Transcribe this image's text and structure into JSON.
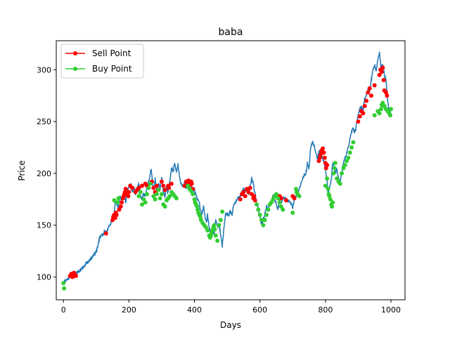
{
  "chart_data": {
    "type": "line",
    "title": "baba",
    "xlabel": "Days",
    "ylabel": "Price",
    "xlim": [
      -22,
      1043
    ],
    "ylim": [
      78,
      328
    ],
    "xticks": [
      0,
      200,
      400,
      600,
      800,
      1000
    ],
    "yticks": [
      100,
      150,
      200,
      250,
      300
    ],
    "grid": false,
    "legend_position": "top-left",
    "series": [
      {
        "name": "",
        "color": "#1f77b4",
        "anchors": [
          [
            0,
            94
          ],
          [
            10,
            97
          ],
          [
            20,
            100
          ],
          [
            30,
            102
          ],
          [
            40,
            104
          ],
          [
            50,
            106
          ],
          [
            60,
            110
          ],
          [
            70,
            113
          ],
          [
            80,
            116
          ],
          [
            90,
            120
          ],
          [
            100,
            124
          ],
          [
            110,
            137
          ],
          [
            115,
            141
          ],
          [
            120,
            139
          ],
          [
            125,
            145
          ],
          [
            130,
            142
          ],
          [
            140,
            150
          ],
          [
            150,
            154
          ],
          [
            155,
            160
          ],
          [
            158,
            175
          ],
          [
            162,
            172
          ],
          [
            168,
            165
          ],
          [
            172,
            178
          ],
          [
            178,
            174
          ],
          [
            185,
            180
          ],
          [
            190,
            172
          ],
          [
            195,
            184
          ],
          [
            200,
            186
          ],
          [
            205,
            190
          ],
          [
            210,
            182
          ],
          [
            215,
            186
          ],
          [
            220,
            180
          ],
          [
            225,
            185
          ],
          [
            230,
            190
          ],
          [
            235,
            178
          ],
          [
            240,
            175
          ],
          [
            245,
            180
          ],
          [
            250,
            178
          ],
          [
            255,
            185
          ],
          [
            260,
            192
          ],
          [
            265,
            200
          ],
          [
            268,
            205
          ],
          [
            272,
            190
          ],
          [
            276,
            185
          ],
          [
            280,
            195
          ],
          [
            285,
            182
          ],
          [
            290,
            190
          ],
          [
            295,
            185
          ],
          [
            300,
            195
          ],
          [
            305,
            182
          ],
          [
            310,
            178
          ],
          [
            315,
            190
          ],
          [
            318,
            180
          ],
          [
            322,
            185
          ],
          [
            330,
            205
          ],
          [
            335,
            202
          ],
          [
            340,
            210
          ],
          [
            345,
            200
          ],
          [
            350,
            209
          ],
          [
            355,
            195
          ],
          [
            360,
            190
          ],
          [
            365,
            188
          ],
          [
            370,
            192
          ],
          [
            375,
            185
          ],
          [
            380,
            190
          ],
          [
            385,
            185
          ],
          [
            390,
            188
          ],
          [
            395,
            183
          ],
          [
            400,
            185
          ],
          [
            405,
            178
          ],
          [
            410,
            175
          ],
          [
            415,
            172
          ],
          [
            418,
            165
          ],
          [
            422,
            160
          ],
          [
            428,
            168
          ],
          [
            432,
            158
          ],
          [
            438,
            152
          ],
          [
            440,
            160
          ],
          [
            445,
            148
          ],
          [
            450,
            140
          ],
          [
            455,
            150
          ],
          [
            460,
            142
          ],
          [
            465,
            155
          ],
          [
            470,
            148
          ],
          [
            475,
            152
          ],
          [
            480,
            140
          ],
          [
            485,
            130
          ],
          [
            490,
            148
          ],
          [
            495,
            160
          ],
          [
            500,
            162
          ],
          [
            505,
            160
          ],
          [
            510,
            163
          ],
          [
            515,
            160
          ],
          [
            520,
            170
          ],
          [
            525,
            172
          ],
          [
            530,
            175
          ],
          [
            540,
            178
          ],
          [
            545,
            182
          ],
          [
            550,
            185
          ],
          [
            555,
            182
          ],
          [
            560,
            186
          ],
          [
            565,
            180
          ],
          [
            570,
            188
          ],
          [
            575,
            195
          ],
          [
            580,
            190
          ],
          [
            585,
            180
          ],
          [
            590,
            170
          ],
          [
            595,
            165
          ],
          [
            600,
            158
          ],
          [
            605,
            150
          ],
          [
            610,
            155
          ],
          [
            615,
            160
          ],
          [
            620,
            168
          ],
          [
            625,
            165
          ],
          [
            630,
            170
          ],
          [
            635,
            172
          ],
          [
            640,
            180
          ],
          [
            645,
            175
          ],
          [
            650,
            170
          ],
          [
            655,
            165
          ],
          [
            660,
            175
          ],
          [
            665,
            170
          ],
          [
            670,
            177
          ],
          [
            680,
            175
          ],
          [
            690,
            172
          ],
          [
            700,
            168
          ],
          [
            705,
            175
          ],
          [
            710,
            178
          ],
          [
            720,
            185
          ],
          [
            730,
            195
          ],
          [
            740,
            200
          ],
          [
            745,
            210
          ],
          [
            750,
            205
          ],
          [
            755,
            225
          ],
          [
            760,
            230
          ],
          [
            765,
            228
          ],
          [
            770,
            220
          ],
          [
            775,
            215
          ],
          [
            780,
            222
          ],
          [
            785,
            220
          ],
          [
            790,
            215
          ],
          [
            795,
            212
          ],
          [
            800,
            205
          ],
          [
            805,
            192
          ],
          [
            808,
            180
          ],
          [
            812,
            185
          ],
          [
            818,
            195
          ],
          [
            822,
            210
          ],
          [
            826,
            208
          ],
          [
            830,
            200
          ],
          [
            835,
            205
          ],
          [
            840,
            195
          ],
          [
            845,
            190
          ],
          [
            850,
            200
          ],
          [
            855,
            210
          ],
          [
            860,
            215
          ],
          [
            865,
            220
          ],
          [
            870,
            225
          ],
          [
            875,
            235
          ],
          [
            880,
            240
          ],
          [
            885,
            245
          ],
          [
            888,
            240
          ],
          [
            892,
            242
          ],
          [
            896,
            250
          ],
          [
            900,
            255
          ],
          [
            905,
            262
          ],
          [
            910,
            265
          ],
          [
            915,
            260
          ],
          [
            920,
            272
          ],
          [
            925,
            275
          ],
          [
            930,
            282
          ],
          [
            935,
            278
          ],
          [
            940,
            290
          ],
          [
            945,
            300
          ],
          [
            950,
            305
          ],
          [
            955,
            298
          ],
          [
            960,
            310
          ],
          [
            965,
            316
          ],
          [
            970,
            302
          ],
          [
            975,
            305
          ],
          [
            980,
            295
          ],
          [
            985,
            290
          ],
          [
            990,
            270
          ],
          [
            995,
            260
          ],
          [
            1000,
            262
          ]
        ]
      }
    ],
    "sell_points": {
      "name": "Sell Point",
      "color": "#ff0000",
      "x": [
        20,
        24,
        28,
        32,
        36,
        38,
        130,
        150,
        152,
        155,
        158,
        160,
        162,
        170,
        175,
        178,
        182,
        184,
        186,
        188,
        190,
        194,
        198,
        200,
        204,
        210,
        220,
        225,
        230,
        240,
        250,
        255,
        270,
        275,
        280,
        285,
        290,
        300,
        305,
        310,
        320,
        322,
        330,
        370,
        375,
        380,
        382,
        385,
        388,
        390,
        392,
        395,
        540,
        545,
        550,
        555,
        560,
        565,
        570,
        575,
        580,
        582,
        585,
        660,
        665,
        680,
        700,
        705,
        780,
        783,
        785,
        788,
        790,
        792,
        795,
        798,
        800,
        802,
        805,
        900,
        905,
        910,
        915,
        920,
        925,
        930,
        935,
        940,
        950,
        965,
        968,
        972,
        975,
        978,
        980,
        985,
        988
      ],
      "y": [
        101,
        103,
        100,
        104,
        102,
        101,
        142,
        155,
        158,
        160,
        157,
        162,
        160,
        165,
        168,
        172,
        176,
        178,
        180,
        182,
        185,
        180,
        178,
        182,
        188,
        186,
        182,
        184,
        186,
        188,
        190,
        188,
        192,
        186,
        182,
        188,
        184,
        192,
        188,
        184,
        188,
        186,
        190,
        188,
        192,
        190,
        193,
        191,
        189,
        192,
        190,
        185,
        175,
        180,
        182,
        178,
        185,
        182,
        186,
        180,
        176,
        178,
        174,
        178,
        176,
        174,
        178,
        176,
        212,
        215,
        218,
        222,
        220,
        224,
        220,
        215,
        210,
        205,
        208,
        250,
        255,
        260,
        258,
        265,
        270,
        278,
        282,
        275,
        285,
        295,
        300,
        298,
        302,
        290,
        280,
        278,
        275
      ]
    },
    "buy_points": {
      "name": "Buy Point",
      "color": "#32cd32",
      "x": [
        0,
        2,
        155,
        165,
        168,
        230,
        235,
        240,
        245,
        250,
        255,
        260,
        265,
        275,
        280,
        285,
        290,
        295,
        300,
        305,
        310,
        315,
        320,
        325,
        330,
        335,
        340,
        345,
        380,
        385,
        390,
        395,
        400,
        402,
        405,
        408,
        410,
        412,
        415,
        418,
        420,
        425,
        430,
        435,
        440,
        445,
        448,
        450,
        452,
        455,
        458,
        460,
        462,
        465,
        470,
        475,
        480,
        485,
        590,
        595,
        600,
        605,
        610,
        615,
        620,
        625,
        630,
        635,
        640,
        645,
        650,
        655,
        660,
        665,
        670,
        700,
        710,
        712,
        715,
        720,
        800,
        805,
        808,
        810,
        812,
        815,
        818,
        820,
        822,
        825,
        828,
        830,
        835,
        840,
        845,
        850,
        855,
        860,
        865,
        870,
        875,
        880,
        885,
        950,
        960,
        965,
        970,
        972,
        975,
        980,
        985,
        990,
        995,
        998,
        1000
      ],
      "y": [
        94,
        89,
        174,
        172,
        176,
        178,
        182,
        170,
        175,
        172,
        180,
        186,
        190,
        178,
        175,
        180,
        184,
        176,
        180,
        170,
        168,
        174,
        176,
        178,
        182,
        180,
        178,
        176,
        188,
        185,
        183,
        180,
        175,
        172,
        170,
        168,
        165,
        162,
        160,
        158,
        155,
        152,
        150,
        148,
        145,
        140,
        138,
        140,
        142,
        145,
        148,
        150,
        146,
        140,
        135,
        150,
        155,
        163,
        170,
        165,
        160,
        155,
        150,
        155,
        160,
        165,
        170,
        172,
        175,
        178,
        180,
        176,
        172,
        168,
        165,
        162,
        185,
        182,
        180,
        178,
        188,
        195,
        185,
        180,
        178,
        175,
        170,
        168,
        172,
        200,
        205,
        210,
        195,
        192,
        190,
        200,
        205,
        208,
        212,
        215,
        220,
        225,
        230,
        256,
        260,
        258,
        262,
        266,
        268,
        265,
        262,
        260,
        258,
        256,
        262
      ]
    }
  }
}
